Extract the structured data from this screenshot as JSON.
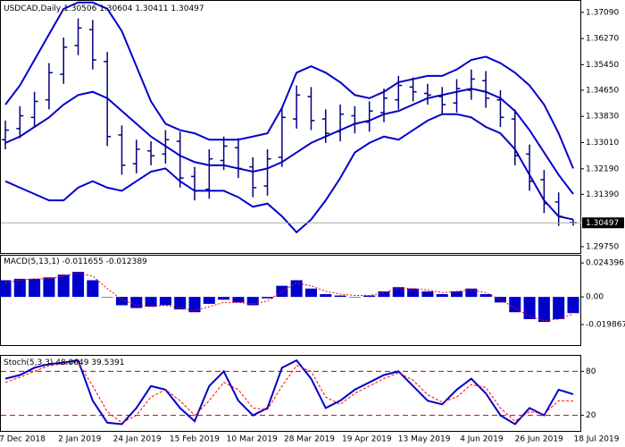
{
  "chart_data": [
    {
      "type": "ohlc",
      "title": "USDCAD,Daily",
      "header_values": [
        1.30506,
        1.30604,
        1.30411,
        1.30497
      ],
      "x_labels": [
        "7 Dec 2018",
        "2 Jan 2019",
        "24 Jan 2019",
        "15 Feb 2019",
        "10 Mar 2019",
        "28 Mar 2019",
        "19 Apr 2019",
        "13 May 2019",
        "4 Jun 2019",
        "26 Jun 2019",
        "18 Jul 2019"
      ],
      "color": "#000080",
      "open": [
        1.331,
        1.3345,
        1.338,
        1.3435,
        1.3515,
        1.3605,
        1.3655,
        1.3555,
        1.3325,
        1.3235,
        1.3275,
        1.3265,
        1.3305,
        1.3195,
        1.3155,
        1.3245,
        1.3285,
        1.3225,
        1.3165,
        1.3255,
        1.3375,
        1.3445,
        1.3375,
        1.3335,
        1.3385,
        1.3365,
        1.3395,
        1.3435,
        1.3475,
        1.3455,
        1.3445,
        1.3425,
        1.3465,
        1.3495,
        1.3435,
        1.3375,
        1.3265,
        1.3185,
        1.3115,
        1.30506
      ],
      "high": [
        1.337,
        1.3415,
        1.346,
        1.355,
        1.363,
        1.369,
        1.3685,
        1.3585,
        1.3355,
        1.331,
        1.3305,
        1.334,
        1.3335,
        1.3225,
        1.328,
        1.332,
        1.3315,
        1.3255,
        1.328,
        1.341,
        1.348,
        1.3475,
        1.3405,
        1.342,
        1.3415,
        1.343,
        1.347,
        1.351,
        1.3505,
        1.3485,
        1.3475,
        1.35,
        1.353,
        1.3525,
        1.3465,
        1.3405,
        1.3295,
        1.3215,
        1.3145,
        1.30604
      ],
      "low": [
        1.328,
        1.3315,
        1.335,
        1.3405,
        1.3485,
        1.3575,
        1.353,
        1.329,
        1.32,
        1.3205,
        1.323,
        1.3235,
        1.316,
        1.312,
        1.3125,
        1.3215,
        1.319,
        1.313,
        1.3135,
        1.3225,
        1.3345,
        1.334,
        1.33,
        1.3305,
        1.333,
        1.3335,
        1.3365,
        1.3405,
        1.343,
        1.342,
        1.339,
        1.3395,
        1.3435,
        1.341,
        1.335,
        1.323,
        1.315,
        1.308,
        1.304,
        1.30411
      ],
      "close": [
        1.334,
        1.3385,
        1.343,
        1.352,
        1.36,
        1.366,
        1.356,
        1.332,
        1.323,
        1.328,
        1.326,
        1.331,
        1.319,
        1.315,
        1.325,
        1.329,
        1.322,
        1.316,
        1.325,
        1.338,
        1.345,
        1.337,
        1.333,
        1.339,
        1.336,
        1.34,
        1.344,
        1.348,
        1.346,
        1.345,
        1.342,
        1.347,
        1.35,
        1.344,
        1.338,
        1.326,
        1.318,
        1.311,
        1.307,
        1.30497
      ],
      "bands": {
        "color": "#0000cc",
        "upper": [
          1.342,
          1.348,
          1.356,
          1.364,
          1.372,
          1.374,
          1.374,
          1.372,
          1.365,
          1.354,
          1.343,
          1.336,
          1.334,
          1.333,
          1.331,
          1.331,
          1.331,
          1.332,
          1.333,
          1.341,
          1.352,
          1.354,
          1.352,
          1.349,
          1.345,
          1.344,
          1.346,
          1.349,
          1.35,
          1.351,
          1.351,
          1.353,
          1.356,
          1.357,
          1.355,
          1.352,
          1.348,
          1.342,
          1.333,
          1.322
        ],
        "middle": [
          1.33,
          1.332,
          1.335,
          1.338,
          1.342,
          1.345,
          1.346,
          1.344,
          1.34,
          1.336,
          1.332,
          1.329,
          1.326,
          1.324,
          1.323,
          1.323,
          1.322,
          1.321,
          1.322,
          1.324,
          1.327,
          1.33,
          1.332,
          1.334,
          1.336,
          1.337,
          1.339,
          1.34,
          1.342,
          1.344,
          1.345,
          1.346,
          1.347,
          1.346,
          1.344,
          1.34,
          1.334,
          1.327,
          1.32,
          1.314
        ],
        "lower": [
          1.318,
          1.316,
          1.314,
          1.312,
          1.312,
          1.316,
          1.318,
          1.316,
          1.315,
          1.318,
          1.321,
          1.322,
          1.318,
          1.315,
          1.315,
          1.315,
          1.313,
          1.31,
          1.311,
          1.307,
          1.302,
          1.306,
          1.312,
          1.319,
          1.327,
          1.33,
          1.332,
          1.331,
          1.334,
          1.337,
          1.339,
          1.339,
          1.338,
          1.335,
          1.333,
          1.328,
          1.32,
          1.312,
          1.307,
          1.306
        ]
      },
      "last_price": 1.30497,
      "ylim": [
        1.2958,
        1.3742
      ],
      "yticks": [
        {
          "value": 1.3709,
          "label": "1.37090"
        },
        {
          "value": 1.3627,
          "label": "1.36270"
        },
        {
          "value": 1.3545,
          "label": "1.35450"
        },
        {
          "value": 1.3465,
          "label": "1.34650"
        },
        {
          "value": 1.3383,
          "label": "1.33830"
        },
        {
          "value": 1.3301,
          "label": "1.33010"
        },
        {
          "value": 1.3219,
          "label": "1.32190"
        },
        {
          "value": 1.3139,
          "label": "1.31390"
        },
        {
          "value": 1.2975,
          "label": "1.29750"
        }
      ]
    },
    {
      "type": "bar",
      "title": "MACD(5,13,1)",
      "header_values": [
        -0.011655,
        -0.012389
      ],
      "color": "#0000cc",
      "values": [
        0.012,
        0.013,
        0.013,
        0.014,
        0.016,
        0.018,
        0.012,
        0.0,
        -0.006,
        -0.008,
        -0.007,
        -0.006,
        -0.009,
        -0.011,
        -0.005,
        -0.002,
        -0.004,
        -0.006,
        -0.001,
        0.008,
        0.012,
        0.006,
        0.002,
        0.001,
        0.0,
        0.001,
        0.004,
        0.007,
        0.006,
        0.004,
        0.002,
        0.004,
        0.006,
        0.002,
        -0.004,
        -0.011,
        -0.016,
        -0.018,
        -0.016,
        -0.011655
      ],
      "signal": {
        "color": "#ff0000",
        "values": [
          0.01,
          0.012,
          0.013,
          0.013,
          0.015,
          0.017,
          0.015,
          0.006,
          -0.002,
          -0.006,
          -0.007,
          -0.006,
          -0.008,
          -0.01,
          -0.007,
          -0.004,
          -0.004,
          -0.005,
          -0.003,
          0.004,
          0.01,
          0.008,
          0.004,
          0.002,
          0.001,
          0.001,
          0.003,
          0.006,
          0.006,
          0.005,
          0.003,
          0.004,
          0.005,
          0.003,
          -0.002,
          -0.008,
          -0.014,
          -0.017,
          -0.016,
          -0.012389
        ]
      },
      "ylim": [
        -0.034,
        0.029
      ],
      "yticks": [
        0.024396,
        {
          "value": 0,
          "label": "0.00"
        },
        -0.019867
      ]
    },
    {
      "type": "line",
      "title": "Stoch(5,3,3)",
      "header_values": [
        48.8649,
        39.5391
      ],
      "series": [
        {
          "color": "#0000cc",
          "dashed": false,
          "values": [
            70,
            75,
            85,
            90,
            92,
            95,
            40,
            10,
            8,
            30,
            60,
            55,
            30,
            12,
            60,
            80,
            40,
            20,
            30,
            85,
            95,
            70,
            30,
            40,
            55,
            65,
            75,
            80,
            60,
            40,
            35,
            55,
            70,
            50,
            20,
            8,
            30,
            20,
            55,
            48.8649
          ]
        },
        {
          "color": "#ff0000",
          "dashed": true,
          "values": [
            65,
            72,
            80,
            88,
            90,
            92,
            60,
            25,
            10,
            20,
            45,
            55,
            40,
            20,
            40,
            65,
            55,
            30,
            28,
            60,
            88,
            80,
            45,
            35,
            50,
            60,
            70,
            78,
            68,
            48,
            38,
            45,
            62,
            58,
            30,
            12,
            25,
            22,
            40,
            39.5391
          ]
        }
      ],
      "level_color": "#cc0000",
      "ylim": [
        0,
        100
      ],
      "yticks": [
        80,
        20
      ]
    }
  ]
}
